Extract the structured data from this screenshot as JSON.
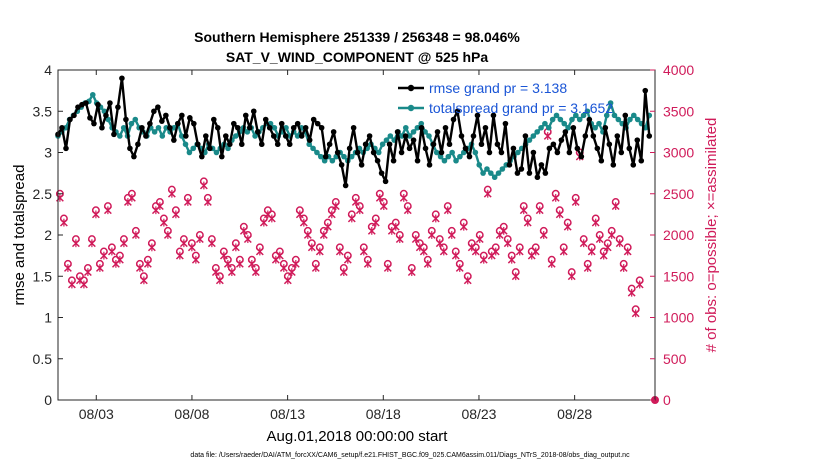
{
  "chart_data": {
    "type": "line",
    "title_line1": "Southern Hemisphere 251339 / 256348 = 98.046%",
    "title_line2": "SAT_V_WIND_COMPONENT @ 525 hPa",
    "xlabel": "Aug.01,2018 00:00:00 start",
    "ylabel_left": "rmse and totalspread",
    "ylabel_right": "# of obs: o=possible; ×=assimilated",
    "footer": "data file: /Users/raeder/DAI/ATM_forcXX/CAM6_setup/f.e21.FHIST_BGC.f09_025.CAM6assim.011/Diags_NTrS_2018-08/obs_diag_output.nc",
    "xlim": [
      1,
      32.2
    ],
    "ylim_left": [
      0,
      4
    ],
    "ylim_right": [
      0,
      4000
    ],
    "x_ticks": [
      3,
      8,
      13,
      18,
      23,
      28
    ],
    "x_tick_labels": [
      "08/03",
      "08/08",
      "08/13",
      "08/18",
      "08/23",
      "08/28"
    ],
    "y_ticks_left": [
      0,
      0.5,
      1,
      1.5,
      2,
      2.5,
      3,
      3.5,
      4
    ],
    "y_tick_labels_left": [
      "0",
      "0.5",
      "1",
      "1.5",
      "2",
      "2.5",
      "3",
      "3.5",
      "4"
    ],
    "y_ticks_right": [
      0,
      500,
      1000,
      1500,
      2000,
      2500,
      3000,
      3500,
      4000
    ],
    "y_tick_labels_right": [
      "0",
      "500",
      "1000",
      "1500",
      "2000",
      "2500",
      "3000",
      "3500",
      "4000"
    ],
    "legend": [
      {
        "label": "rmse grand pr = 3.138",
        "color": "#000000"
      },
      {
        "label": "totalspread grand pr = 3.1652",
        "color": "#1a8a8a"
      }
    ],
    "colors": {
      "rmse": "#000000",
      "spread": "#1a8a8a",
      "obs": "#d01b5a",
      "legend_text": "#1a55d6"
    },
    "series": [
      {
        "name": "rmse",
        "color": "#000000",
        "values": [
          3.22,
          3.3,
          3.05,
          3.4,
          3.45,
          3.55,
          3.58,
          3.6,
          3.42,
          3.35,
          3.58,
          3.3,
          3.45,
          3.6,
          3.22,
          3.55,
          3.9,
          3.4,
          3.05,
          2.95,
          3.1,
          3.3,
          3.2,
          3.35,
          3.5,
          3.55,
          3.38,
          3.45,
          3.3,
          3.15,
          3.35,
          3.45,
          3.2,
          3.42,
          3.35,
          3.1,
          2.95,
          3.2,
          3.05,
          3.4,
          3.3,
          2.95,
          3.2,
          3.1,
          3.35,
          3.3,
          3.1,
          3.45,
          3.3,
          3.5,
          3.25,
          3.1,
          3.4,
          3.3,
          3.2,
          3.1,
          3.35,
          3.2,
          3.1,
          3.3,
          3.35,
          3.2,
          3.3,
          3.15,
          3.4,
          3.35,
          3.3,
          2.95,
          3.1,
          3.25,
          3.0,
          2.85,
          2.6,
          3.05,
          3.3,
          3.0,
          2.85,
          3.1,
          3.2,
          3.0,
          2.9,
          2.75,
          2.65,
          3.1,
          2.9,
          3.25,
          3.0,
          3.2,
          3.05,
          3.15,
          2.9,
          3.3,
          3.05,
          2.85,
          3.1,
          3.25,
          3.0,
          3.3,
          3.1,
          3.4,
          3.5,
          3.2,
          3.05,
          2.95,
          3.2,
          3.45,
          3.1,
          3.3,
          3.0,
          3.45,
          3.1,
          3.0,
          3.35,
          2.85,
          3.05,
          2.75,
          2.8,
          3.2,
          2.75,
          3.0,
          2.7,
          2.85,
          2.75,
          3.05,
          3.1,
          3.0,
          3.15,
          3.25,
          3.0,
          3.3,
          3.05,
          2.95,
          3.2,
          3.4,
          3.2,
          3.05,
          2.9,
          3.3,
          3.1,
          2.85,
          3.2,
          3.0,
          3.45,
          3.05,
          2.85,
          3.15,
          2.9,
          3.75,
          3.2
        ]
      },
      {
        "name": "totalspread",
        "color": "#1a8a8a",
        "values": [
          3.2,
          3.25,
          3.3,
          3.4,
          3.45,
          3.5,
          3.55,
          3.6,
          3.62,
          3.7,
          3.6,
          3.55,
          3.5,
          3.4,
          3.3,
          3.25,
          3.2,
          3.3,
          3.2,
          3.35,
          3.4,
          3.3,
          3.25,
          3.2,
          3.3,
          3.25,
          3.3,
          3.2,
          3.3,
          3.25,
          3.3,
          3.35,
          3.2,
          3.1,
          3.0,
          3.05,
          3.1,
          3.05,
          3.0,
          3.1,
          3.05,
          3.0,
          3.05,
          3.1,
          3.05,
          3.15,
          3.2,
          3.25,
          3.3,
          3.25,
          3.3,
          3.2,
          3.25,
          3.3,
          3.35,
          3.35,
          3.3,
          3.2,
          3.25,
          3.3,
          3.2,
          3.25,
          3.2,
          3.3,
          3.25,
          3.1,
          3.05,
          3.0,
          2.95,
          2.9,
          2.95,
          2.9,
          2.95,
          3.0,
          2.95,
          2.9,
          2.95,
          3.0,
          3.05,
          3.0,
          3.05,
          3.1,
          3.05,
          3.0,
          3.1,
          3.15,
          3.2,
          3.15,
          3.25,
          3.2,
          3.3,
          3.2,
          3.25,
          3.3,
          3.35,
          3.25,
          3.2,
          3.1,
          3.0,
          2.95,
          2.9,
          2.95,
          3.0,
          2.9,
          2.95,
          3.0,
          3.05,
          3.1,
          3.0,
          2.85,
          2.75,
          2.8,
          2.75,
          2.7,
          2.75,
          2.8,
          2.85,
          2.9,
          2.95,
          3.0,
          3.05,
          3.1,
          3.15,
          3.2,
          3.25,
          3.3,
          3.35,
          3.3,
          3.4,
          3.45,
          3.4,
          3.35,
          3.3,
          3.4,
          3.45,
          3.4,
          3.45,
          3.5,
          3.35,
          3.3,
          3.35,
          3.25,
          3.45,
          3.6,
          3.45,
          3.4,
          3.35,
          3.3,
          3.4,
          3.45,
          3.4,
          3.35,
          3.3,
          3.45
        ]
      },
      {
        "name": "obs_possible",
        "color": "#d01b5a",
        "marker": "o",
        "values": [
          2500,
          2200,
          1650,
          1450,
          1950,
          1500,
          1450,
          1600,
          1950,
          2300,
          1650,
          1800,
          2350,
          1850,
          1700,
          1750,
          1950,
          2450,
          2500,
          2050,
          1650,
          1500,
          1700,
          1900,
          2350,
          2400,
          2200,
          2050,
          2550,
          2300,
          1800,
          1950,
          2450,
          1900,
          1750,
          2000,
          2650,
          2450,
          1950,
          1600,
          1500,
          1800,
          1700,
          1600,
          1900,
          1700,
          2100,
          2000,
          1700,
          1600,
          1850,
          2200,
          2300,
          2250,
          1750,
          1800,
          1650,
          1500,
          1600,
          1700,
          2300,
          2200,
          2050,
          1900,
          1650,
          1850,
          2050,
          2150,
          2300,
          2400,
          1850,
          1600,
          1750,
          2250,
          2450,
          2350,
          1850,
          1700,
          2100,
          2200,
          2500,
          2400,
          1650,
          2100,
          2150,
          2000,
          2500,
          2350,
          1600,
          2000,
          1900,
          1850,
          1700,
          2050,
          2250,
          1950,
          1850,
          2350,
          2050,
          1800,
          1650,
          2150,
          1500,
          1900,
          1850,
          2000,
          1750,
          2550,
          1800,
          1850,
          2050,
          2100,
          1950,
          1750,
          1550,
          1850,
          2350,
          2200,
          1800,
          1850,
          2350,
          2050,
          3250,
          1700,
          2500,
          2300,
          1850,
          2150,
          1550,
          2450,
          3000,
          1950,
          1650,
          1850,
          2200,
          2000,
          1800,
          1900,
          2050,
          2400,
          1950,
          1650,
          1850,
          1350,
          1100,
          1450
        ]
      },
      {
        "name": "obs_assimilated",
        "color": "#d01b5a",
        "marker": "x",
        "values": [
          2450,
          2150,
          1600,
          1400,
          1900,
          1450,
          1400,
          1550,
          1900,
          2250,
          1600,
          1750,
          2300,
          1800,
          1650,
          1700,
          1900,
          2400,
          2450,
          2000,
          1600,
          1450,
          1650,
          1850,
          2300,
          2350,
          2150,
          2000,
          2500,
          2250,
          1750,
          1900,
          2400,
          1850,
          1700,
          1950,
          2600,
          2400,
          1900,
          1550,
          1450,
          1750,
          1650,
          1550,
          1850,
          1650,
          2050,
          1950,
          1650,
          1550,
          1800,
          2150,
          2250,
          2200,
          1700,
          1750,
          1600,
          1450,
          1550,
          1650,
          2250,
          2150,
          2000,
          1850,
          1600,
          1800,
          2000,
          2100,
          2250,
          2350,
          1800,
          1550,
          1700,
          2200,
          2400,
          2300,
          1800,
          1650,
          2050,
          2150,
          2450,
          2350,
          1600,
          2050,
          2100,
          1950,
          2450,
          2300,
          1550,
          1950,
          1850,
          1800,
          1650,
          2000,
          2200,
          1900,
          1800,
          2300,
          2000,
          1750,
          1600,
          2100,
          1450,
          1850,
          1800,
          1950,
          1700,
          2500,
          1750,
          1800,
          2000,
          2050,
          1900,
          1700,
          1500,
          1800,
          2300,
          2150,
          1750,
          1800,
          2300,
          2000,
          3200,
          1650,
          2450,
          2250,
          1800,
          2100,
          1500,
          2400,
          2950,
          1900,
          1600,
          1800,
          2150,
          1950,
          1750,
          1850,
          2000,
          2350,
          1900,
          1600,
          1800,
          1300,
          1050,
          1400
        ]
      },
      {
        "name": "obs_zero_end",
        "color": "#d01b5a",
        "marker": "o",
        "values": [
          0
        ]
      }
    ]
  }
}
